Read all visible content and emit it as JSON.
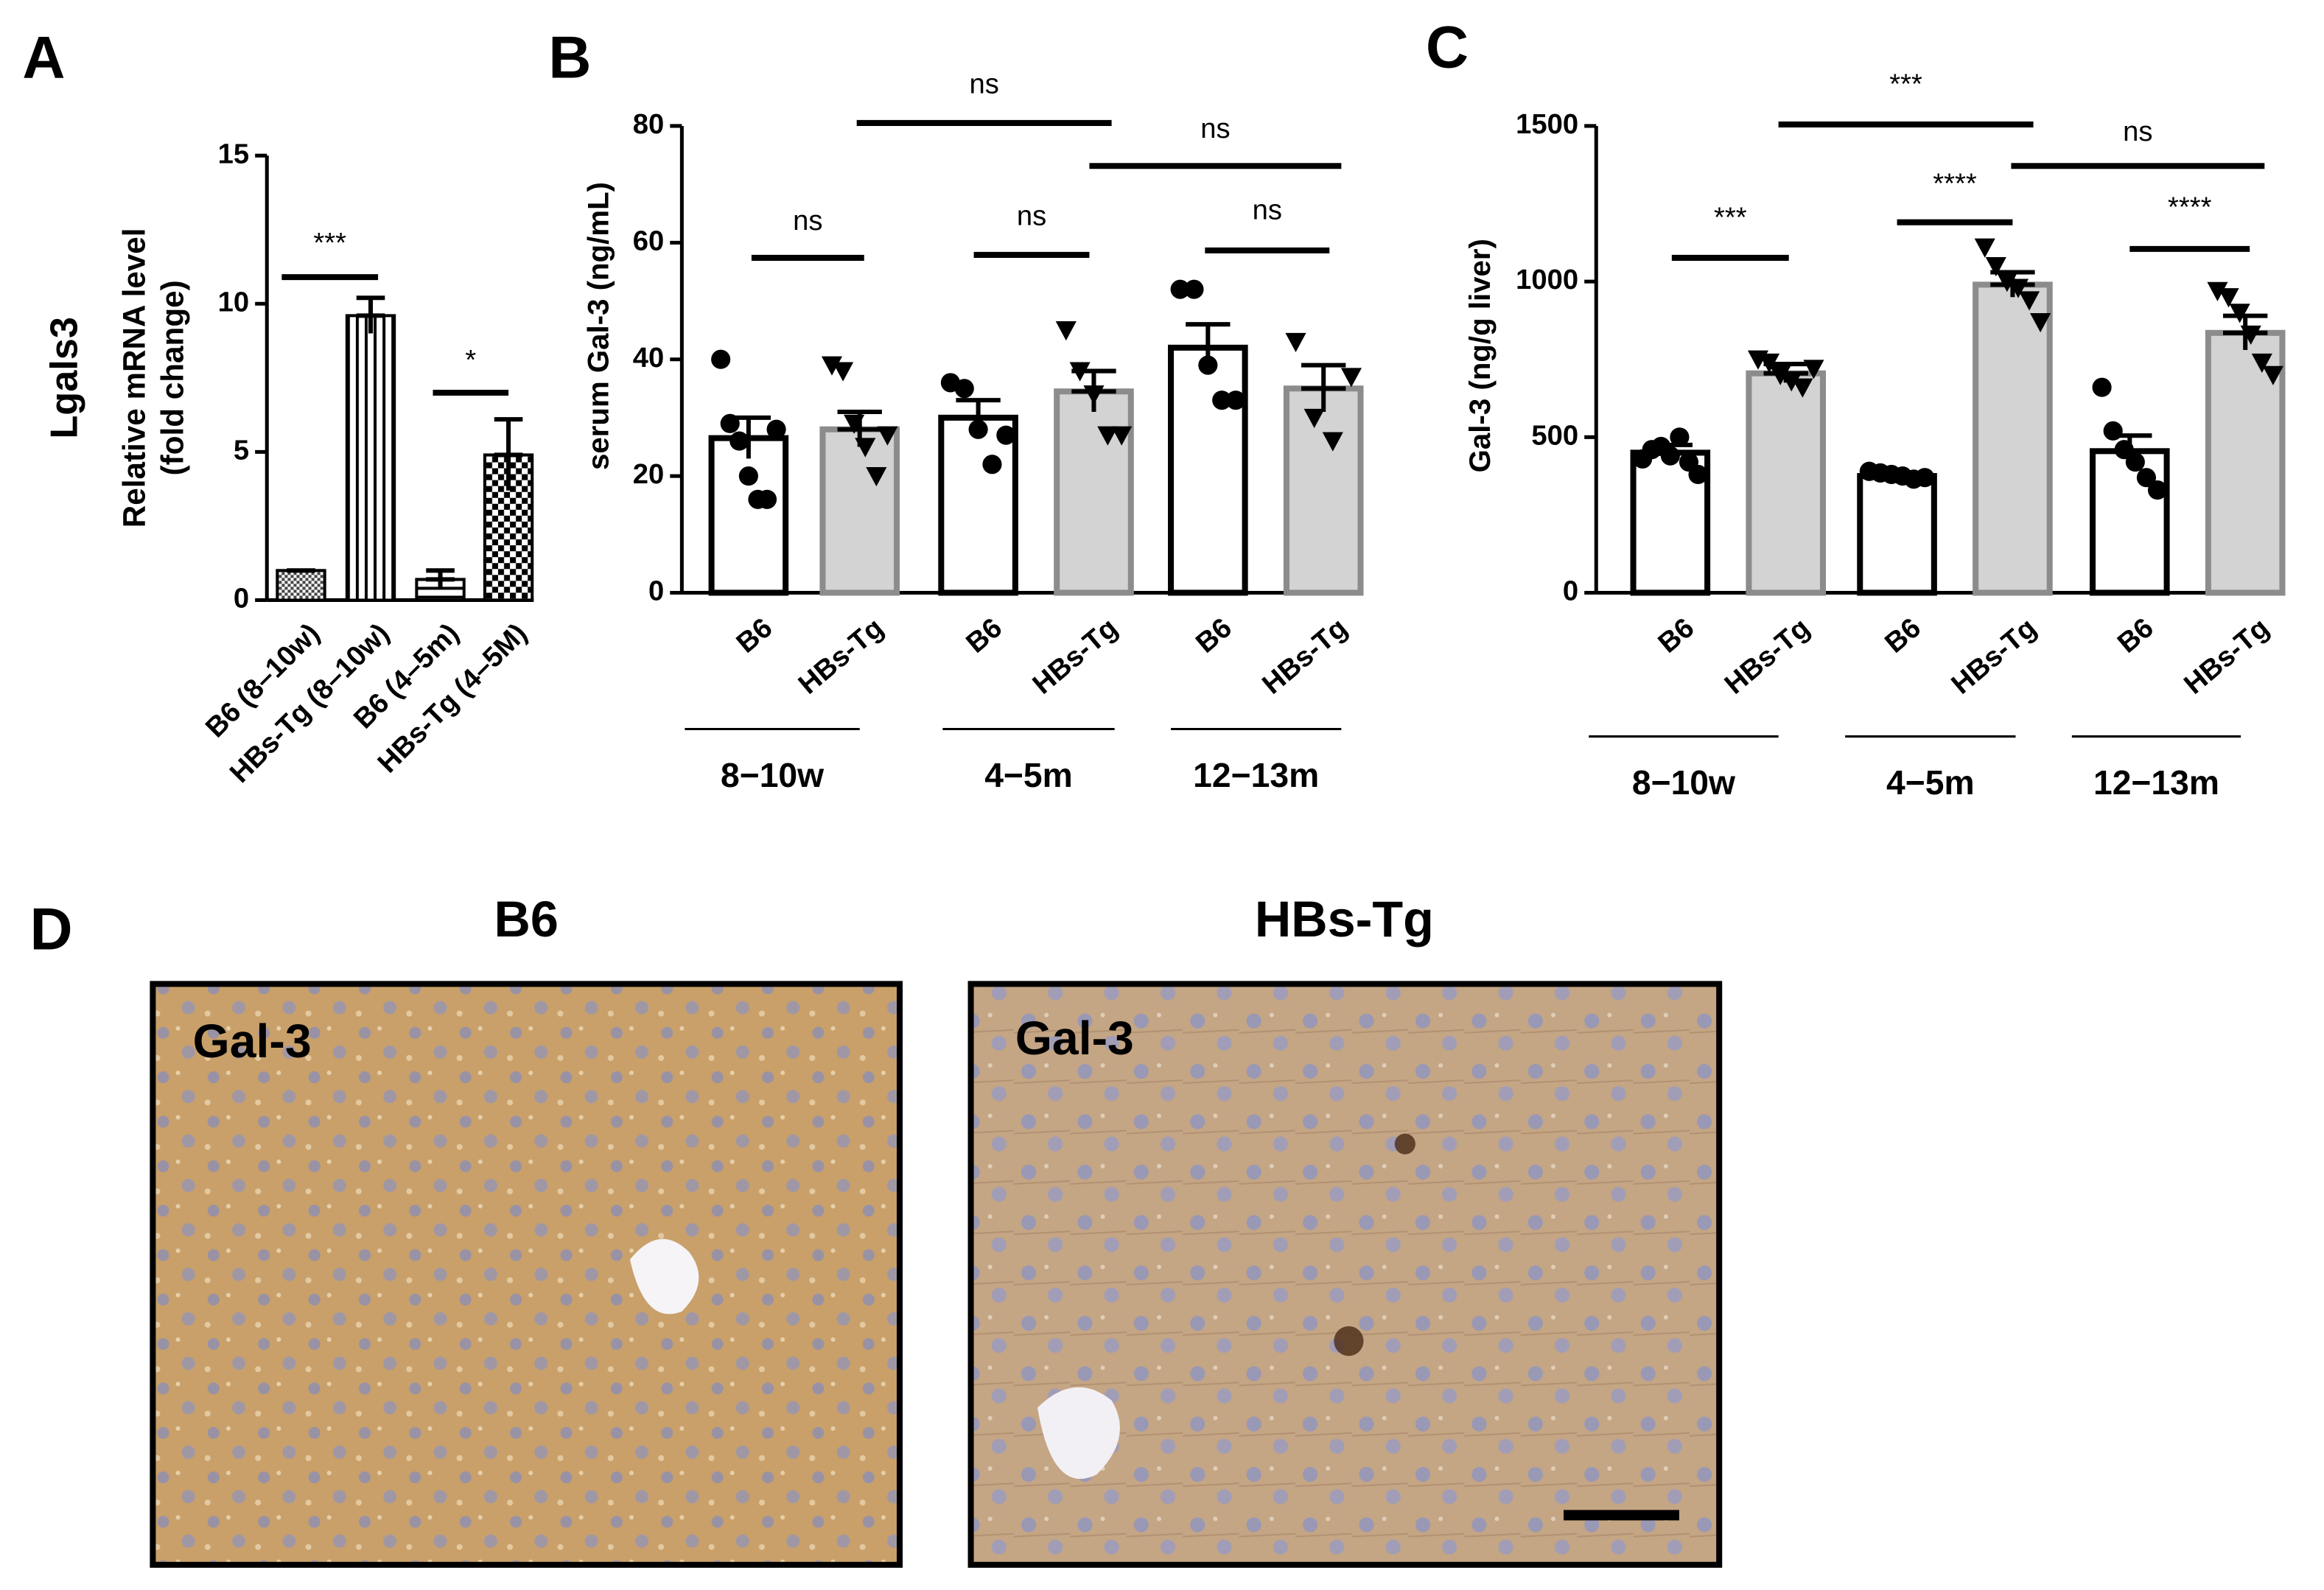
{
  "chart_data": [
    {
      "type": "bar",
      "panel": "A",
      "ylabel_title": "Lgals3",
      "ylabel": "Relative mRNA level",
      "ylabel_sub": "(fold change)",
      "categories": [
        "B6 (8–10w)",
        "HBs-Tg (8–10w)",
        "B6 (4–5m)",
        "HBs-Tg (4–5M)"
      ],
      "values": [
        1,
        9.6,
        0.7,
        4.9
      ],
      "errors": [
        0,
        0.6,
        0.3,
        1.2
      ],
      "ylim": [
        0,
        15
      ],
      "yticks": [
        0,
        5,
        10,
        15
      ],
      "significance": [
        "***",
        "*"
      ]
    },
    {
      "type": "bar",
      "panel": "B",
      "ylabel": "serum Gal-3 (ng/mL)",
      "categories": [
        "B6",
        "HBs-Tg",
        "B6",
        "HBs-Tg",
        "B6",
        "HBs-Tg"
      ],
      "groups": [
        "8−10w",
        "4−5m",
        "12−13m"
      ],
      "values": [
        26.5,
        28,
        30,
        34.5,
        42,
        35
      ],
      "errors": [
        3.5,
        3,
        3,
        3.5,
        4,
        4
      ],
      "points": [
        [
          40,
          29,
          26,
          20,
          16,
          16,
          28
        ],
        [
          39,
          38,
          29,
          25,
          20,
          27
        ],
        [
          36,
          35,
          28,
          22,
          27
        ],
        [
          45,
          38,
          34,
          27,
          27
        ],
        [
          52,
          52,
          39,
          33,
          33
        ],
        [
          43,
          30,
          26,
          37
        ]
      ],
      "colors": [
        "#ffffff",
        "#d3d3d3",
        "#ffffff",
        "#d3d3d3",
        "#ffffff",
        "#d3d3d3"
      ],
      "edge_colors": [
        "#000000",
        "#8c8c8c",
        "#000000",
        "#8c8c8c",
        "#000000",
        "#8c8c8c"
      ],
      "ylim": [
        0,
        80
      ],
      "yticks": [
        0,
        20,
        40,
        60,
        80
      ],
      "significance": [
        "ns",
        "ns",
        "ns",
        "ns",
        "ns"
      ]
    },
    {
      "type": "bar",
      "panel": "C",
      "ylabel": "Gal-3 (ng/g liver)",
      "categories": [
        "B6",
        "HBs-Tg",
        "B6",
        "HBs-Tg",
        "B6",
        "HBs-Tg"
      ],
      "groups": [
        "8−10w",
        "4−5m",
        "12−13m"
      ],
      "values": [
        450,
        705,
        375,
        990,
        455,
        835
      ],
      "errors": [
        25,
        30,
        10,
        40,
        50,
        55
      ],
      "points": [
        [
          430,
          460,
          470,
          440,
          500,
          420,
          380
        ],
        [
          750,
          740,
          700,
          680,
          660,
          720
        ],
        [
          390,
          385,
          380,
          375,
          365,
          370
        ],
        [
          1110,
          1050,
          1000,
          980,
          940,
          870
        ],
        [
          660,
          520,
          460,
          420,
          370,
          330
        ],
        [
          970,
          950,
          900,
          830,
          740,
          700
        ]
      ],
      "colors": [
        "#ffffff",
        "#d3d3d3",
        "#ffffff",
        "#d3d3d3",
        "#ffffff",
        "#d3d3d3"
      ],
      "edge_colors": [
        "#000000",
        "#8c8c8c",
        "#000000",
        "#8c8c8c",
        "#000000",
        "#8c8c8c"
      ],
      "ylim": [
        0,
        1500
      ],
      "yticks": [
        0,
        500,
        1000,
        1500
      ],
      "significance": [
        "***",
        "****",
        "****",
        "***",
        "ns"
      ]
    }
  ],
  "panel_d": {
    "panel": "D",
    "images": [
      {
        "title": "B6",
        "stain": "Gal-3"
      },
      {
        "title": "HBs-Tg",
        "stain": "Gal-3"
      }
    ]
  }
}
